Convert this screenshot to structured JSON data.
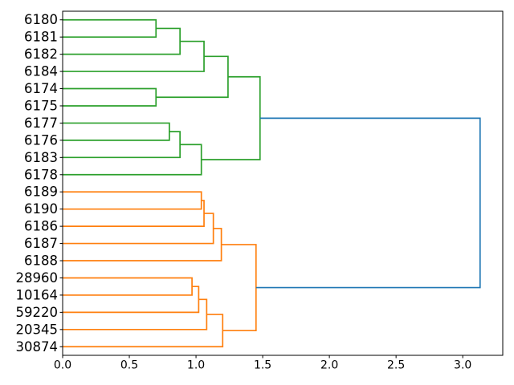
{
  "figure": {
    "background": "#ffffff"
  },
  "chart_data": {
    "type": "dendrogram",
    "title": "",
    "orientation": "horizontal, leaves on left, root on right",
    "grid": false,
    "legend": null,
    "leaves": [
      "6180",
      "6181",
      "6182",
      "6184",
      "6174",
      "6175",
      "6177",
      "6176",
      "6183",
      "6178",
      "6189",
      "6190",
      "6186",
      "6187",
      "6188",
      "28960",
      "10164",
      "59220",
      "20345",
      "30874"
    ],
    "links": [
      {
        "id": "g1",
        "a": "6180",
        "b": "6181",
        "distance": 0.7,
        "color_key": "green"
      },
      {
        "id": "g2",
        "a": "g1",
        "b": "6182",
        "distance": 0.88,
        "color_key": "green"
      },
      {
        "id": "g3",
        "a": "g2",
        "b": "6184",
        "distance": 1.06,
        "color_key": "green"
      },
      {
        "id": "g4",
        "a": "6174",
        "b": "6175",
        "distance": 0.7,
        "color_key": "green"
      },
      {
        "id": "g5",
        "a": "g3",
        "b": "g4",
        "distance": 1.24,
        "color_key": "green"
      },
      {
        "id": "g6",
        "a": "6177",
        "b": "6176",
        "distance": 0.8,
        "color_key": "green"
      },
      {
        "id": "g7",
        "a": "g6",
        "b": "6183",
        "distance": 0.88,
        "color_key": "green"
      },
      {
        "id": "g8",
        "a": "g7",
        "b": "6178",
        "distance": 1.04,
        "color_key": "green"
      },
      {
        "id": "g9",
        "a": "g5",
        "b": "g8",
        "distance": 1.48,
        "color_key": "green"
      },
      {
        "id": "o1",
        "a": "6189",
        "b": "6190",
        "distance": 1.04,
        "color_key": "orange"
      },
      {
        "id": "o2",
        "a": "o1",
        "b": "6186",
        "distance": 1.06,
        "color_key": "orange"
      },
      {
        "id": "o3",
        "a": "o2",
        "b": "6187",
        "distance": 1.13,
        "color_key": "orange"
      },
      {
        "id": "o4",
        "a": "o3",
        "b": "6188",
        "distance": 1.19,
        "color_key": "orange"
      },
      {
        "id": "o5",
        "a": "28960",
        "b": "10164",
        "distance": 0.97,
        "color_key": "orange"
      },
      {
        "id": "o6",
        "a": "o5",
        "b": "59220",
        "distance": 1.02,
        "color_key": "orange"
      },
      {
        "id": "o7",
        "a": "o6",
        "b": "20345",
        "distance": 1.08,
        "color_key": "orange"
      },
      {
        "id": "o8",
        "a": "o7",
        "b": "30874",
        "distance": 1.2,
        "color_key": "orange"
      },
      {
        "id": "o9",
        "a": "o4",
        "b": "o8",
        "distance": 1.45,
        "color_key": "orange"
      },
      {
        "id": "root",
        "a": "g9",
        "b": "o9",
        "distance": 3.13,
        "color_key": "blue"
      }
    ],
    "x_axis": {
      "tick_labels": [
        "0.0",
        "0.5",
        "1.0",
        "1.5",
        "2.0",
        "2.5",
        "3.0"
      ],
      "tick_values": [
        0.0,
        0.5,
        1.0,
        1.5,
        2.0,
        2.5,
        3.0
      ],
      "min": 0.0,
      "max": 3.3
    },
    "colors": {
      "green": "#2ca02c",
      "orange": "#ff7f0e",
      "blue": "#1f77b4",
      "axis": "#000000",
      "text": "#000000"
    }
  }
}
